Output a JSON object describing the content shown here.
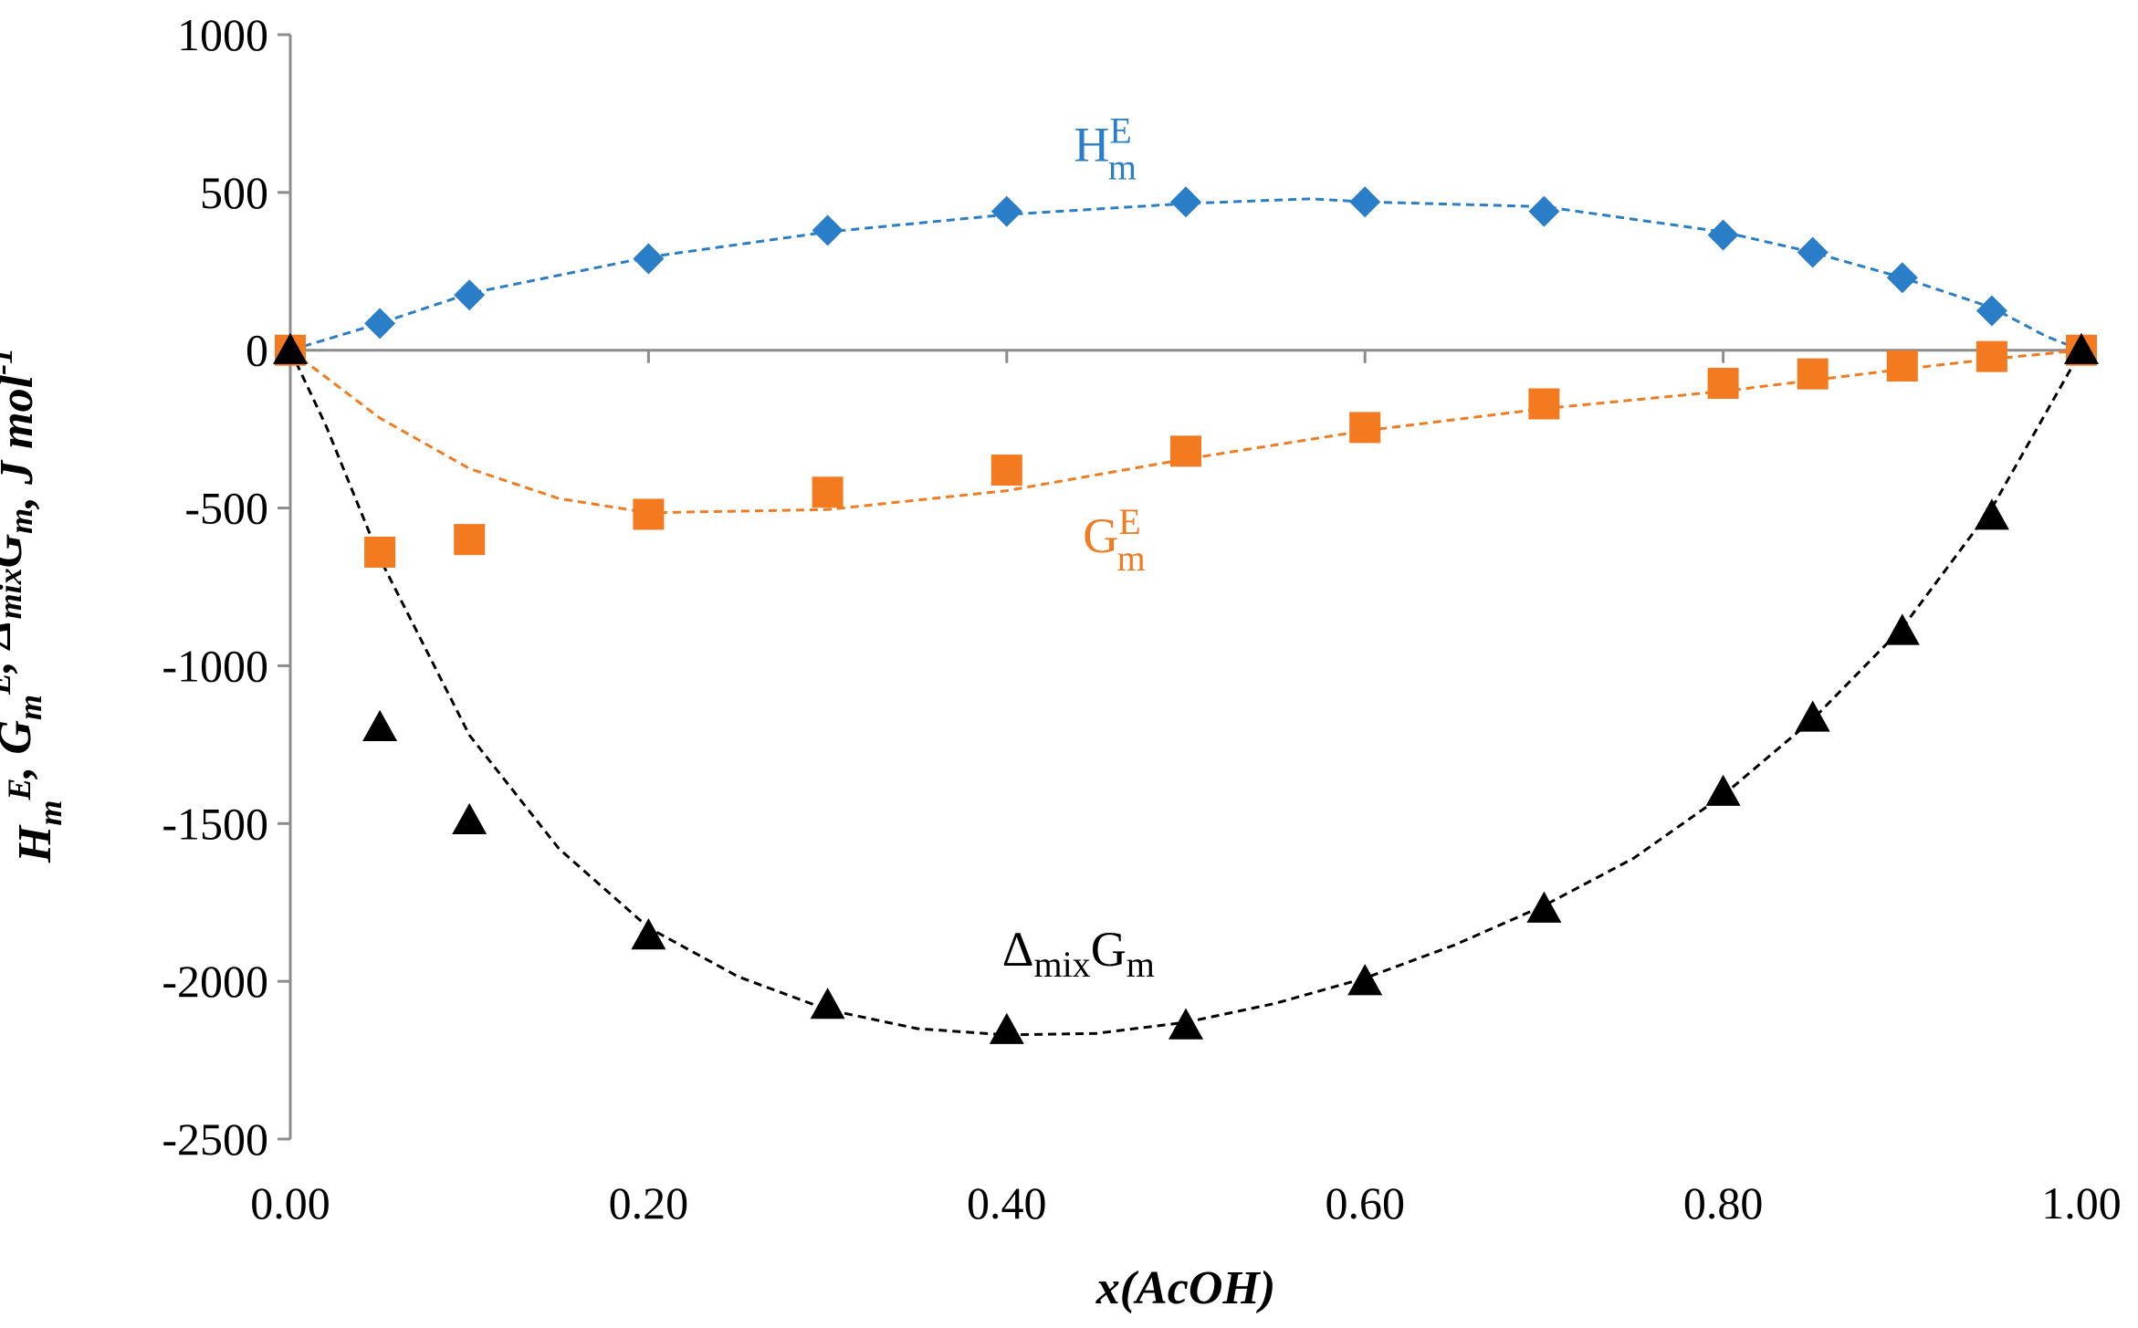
{
  "chart_data": {
    "type": "scatter",
    "title": "",
    "xlabel": "x(AcOH)",
    "ylabel": {
      "parts": [
        {
          "text": "H",
          "sub": "m",
          "sup": "E"
        },
        {
          "text": ", G",
          "sub": "m",
          "sup": "E"
        },
        {
          "text": ", Δ",
          "sub": "mix",
          "sup": ""
        },
        {
          "text": "G",
          "sub": "m",
          "sup": ""
        },
        {
          "text": ", J mol",
          "sub": "",
          "sup": "-1"
        }
      ]
    },
    "xlim": [
      0,
      1
    ],
    "ylim": [
      -2500,
      1000
    ],
    "x_ticks": [
      "0.00",
      "0.20",
      "0.40",
      "0.60",
      "0.80",
      "1.00"
    ],
    "y_ticks": [
      "1000",
      "500",
      "0",
      "-500",
      "-1000",
      "-1500",
      "-2000",
      "-2500"
    ],
    "grid": false,
    "series": [
      {
        "key": "hme",
        "label": {
          "main": "H",
          "sub": "m",
          "sup": "E"
        },
        "color": "#2a7ec8",
        "marker": "diamond",
        "points": [
          [
            0.0,
            0
          ],
          [
            0.05,
            85
          ],
          [
            0.1,
            175
          ],
          [
            0.2,
            290
          ],
          [
            0.3,
            380
          ],
          [
            0.4,
            440
          ],
          [
            0.5,
            470
          ],
          [
            0.6,
            470
          ],
          [
            0.7,
            440
          ],
          [
            0.8,
            365
          ],
          [
            0.85,
            310
          ],
          [
            0.9,
            230
          ],
          [
            0.95,
            125
          ],
          [
            1.0,
            0
          ]
        ],
        "trend": [
          [
            0.0,
            0
          ],
          [
            0.05,
            85
          ],
          [
            0.1,
            180
          ],
          [
            0.2,
            295
          ],
          [
            0.3,
            375
          ],
          [
            0.4,
            430
          ],
          [
            0.5,
            465
          ],
          [
            0.57,
            480
          ],
          [
            0.6,
            470
          ],
          [
            0.7,
            455
          ],
          [
            0.8,
            375
          ],
          [
            0.85,
            310
          ],
          [
            0.9,
            230
          ],
          [
            0.95,
            135
          ],
          [
            0.98,
            45
          ],
          [
            1.0,
            0
          ]
        ]
      },
      {
        "key": "gme",
        "label": {
          "main": "G",
          "sub": "m",
          "sup": "E"
        },
        "color": "#f47a20",
        "marker": "square",
        "points": [
          [
            0.0,
            0
          ],
          [
            0.05,
            -640
          ],
          [
            0.1,
            -600
          ],
          [
            0.2,
            -520
          ],
          [
            0.3,
            -450
          ],
          [
            0.4,
            -380
          ],
          [
            0.5,
            -320
          ],
          [
            0.6,
            -245
          ],
          [
            0.7,
            -170
          ],
          [
            0.8,
            -105
          ],
          [
            0.85,
            -75
          ],
          [
            0.9,
            -50
          ],
          [
            0.95,
            -20
          ],
          [
            1.0,
            0
          ]
        ],
        "trend": [
          [
            0.0,
            0
          ],
          [
            0.05,
            -215
          ],
          [
            0.1,
            -375
          ],
          [
            0.15,
            -470
          ],
          [
            0.2,
            -515
          ],
          [
            0.3,
            -505
          ],
          [
            0.4,
            -445
          ],
          [
            0.5,
            -345
          ],
          [
            0.6,
            -255
          ],
          [
            0.7,
            -185
          ],
          [
            0.8,
            -130
          ],
          [
            0.85,
            -95
          ],
          [
            0.9,
            -60
          ],
          [
            0.95,
            -28
          ],
          [
            1.0,
            0
          ]
        ]
      },
      {
        "key": "dmixg",
        "label": {
          "main": "Δ",
          "sub": "mix",
          "main2": "G",
          "sub2": "m"
        },
        "color": "#000000",
        "marker": "triangle",
        "points": [
          [
            0.0,
            0
          ],
          [
            0.05,
            -1195
          ],
          [
            0.1,
            -1490
          ],
          [
            0.2,
            -1855
          ],
          [
            0.3,
            -2075
          ],
          [
            0.4,
            -2155
          ],
          [
            0.5,
            -2140
          ],
          [
            0.6,
            -2000
          ],
          [
            0.7,
            -1770
          ],
          [
            0.8,
            -1400
          ],
          [
            0.85,
            -1165
          ],
          [
            0.9,
            -890
          ],
          [
            0.95,
            -525
          ],
          [
            1.0,
            0
          ]
        ],
        "trend": [
          [
            0.0,
            0
          ],
          [
            0.02,
            -240
          ],
          [
            0.05,
            -660
          ],
          [
            0.1,
            -1220
          ],
          [
            0.15,
            -1580
          ],
          [
            0.2,
            -1830
          ],
          [
            0.25,
            -1985
          ],
          [
            0.3,
            -2090
          ],
          [
            0.35,
            -2150
          ],
          [
            0.4,
            -2170
          ],
          [
            0.45,
            -2165
          ],
          [
            0.5,
            -2130
          ],
          [
            0.55,
            -2070
          ],
          [
            0.6,
            -1990
          ],
          [
            0.65,
            -1885
          ],
          [
            0.7,
            -1760
          ],
          [
            0.75,
            -1610
          ],
          [
            0.8,
            -1410
          ],
          [
            0.85,
            -1170
          ],
          [
            0.9,
            -880
          ],
          [
            0.95,
            -500
          ],
          [
            0.98,
            -200
          ],
          [
            1.0,
            0
          ]
        ]
      }
    ],
    "labels_at": {
      "hme": [
        0.455,
        600
      ],
      "gme": [
        0.46,
        -640
      ],
      "dmixg": [
        0.44,
        -1950
      ]
    }
  }
}
